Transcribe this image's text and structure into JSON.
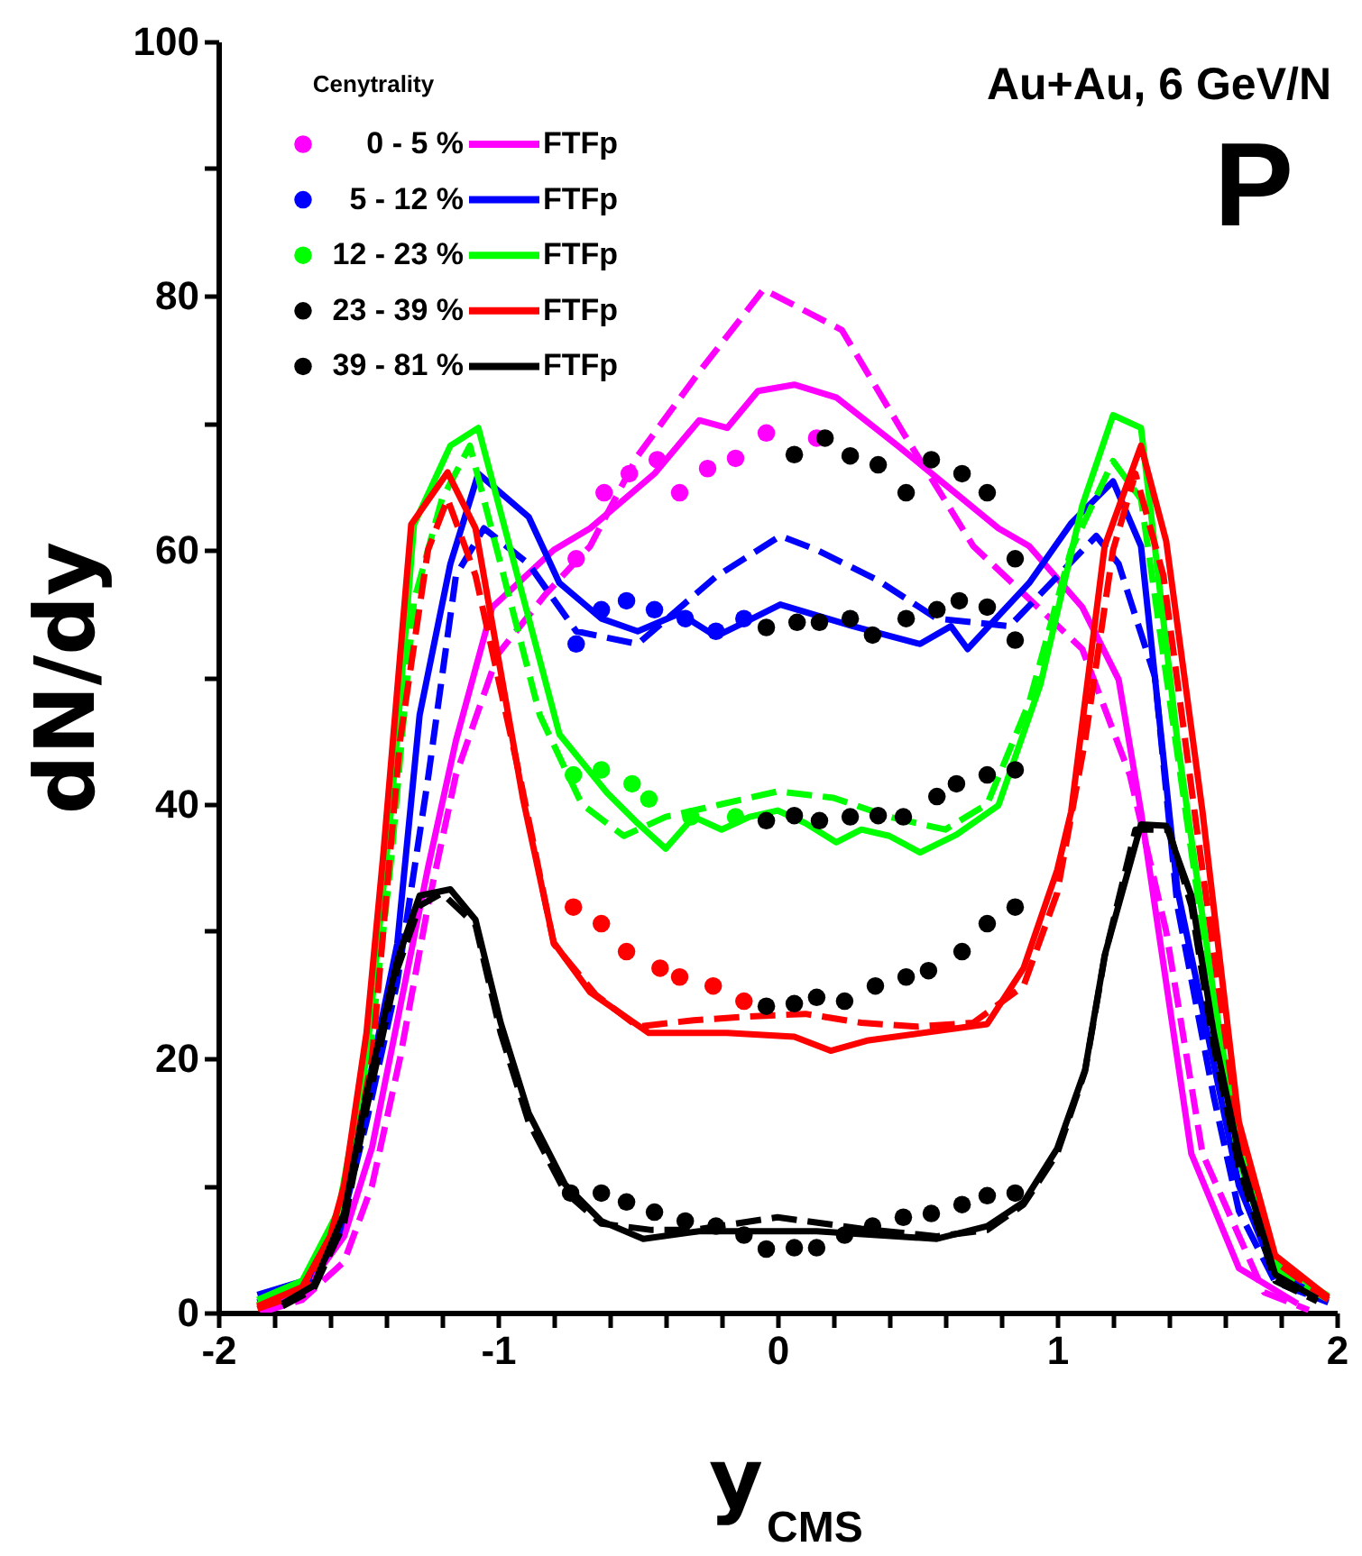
{
  "chart_data": {
    "type": "line",
    "annotations": [
      "Au+Au, 6 GeV/N",
      "P"
    ],
    "xlabel": "y$_{CMS}$",
    "ylabel": "dN/dy",
    "legend_title": "Cenytrality",
    "legend": "top left",
    "xlim": [
      -2,
      2
    ],
    "ylim": [
      0,
      100
    ],
    "xticks": [
      -2,
      {
        "value": -1.8,
        "label": null
      },
      {
        "value": -1.6,
        "label": null
      },
      {
        "value": -1.4,
        "label": null
      },
      {
        "value": -1.2,
        "label": null
      },
      -1,
      {
        "value": -0.8,
        "label": null
      },
      {
        "value": -0.6,
        "label": null
      },
      {
        "value": -0.4,
        "label": null
      },
      {
        "value": -0.2,
        "label": null
      },
      0,
      {
        "value": 0.2,
        "label": null
      },
      {
        "value": 0.4,
        "label": null
      },
      {
        "value": 0.6,
        "label": null
      },
      {
        "value": 0.8,
        "label": null
      },
      1,
      {
        "value": 1.2,
        "label": null
      },
      {
        "value": 1.4,
        "label": null
      },
      {
        "value": 1.6,
        "label": null
      },
      {
        "value": 1.8,
        "label": null
      },
      2
    ],
    "yticks": [
      0,
      {
        "value": 10,
        "label": null
      },
      20,
      {
        "value": 30,
        "label": null
      },
      40,
      {
        "value": 50,
        "label": null
      },
      60,
      {
        "value": 70,
        "label": null
      },
      80,
      {
        "value": 90,
        "label": null
      },
      100
    ],
    "series": [
      {
        "name": "0 -   5 %",
        "type": "scatter",
        "marker": "circle",
        "color": "#ff00ff",
        "x": [
          -0.72,
          -0.62,
          -0.53,
          -0.43,
          -0.35,
          -0.25,
          -0.15,
          -0.04,
          0.14
        ],
        "values": [
          59.3,
          64.5,
          66,
          67.1,
          64.5,
          66.4,
          67.2,
          69.2,
          68.8
        ]
      },
      {
        "type": "scatter",
        "marker": "circle",
        "color": "#000000",
        "x": [
          0.06,
          0.17,
          0.26,
          0.36,
          0.46,
          0.55,
          0.66,
          0.75,
          0.85
        ],
        "values": [
          67.5,
          68.8,
          67.4,
          66.7,
          64.5,
          67.1,
          66,
          64.5,
          59.3
        ]
      },
      {
        "name": "5 - 12 %",
        "type": "scatter",
        "marker": "circle",
        "color": "#0000ff",
        "x": [
          -0.72,
          -0.63,
          -0.54,
          -0.44,
          -0.33,
          -0.22,
          -0.12
        ],
        "values": [
          52.6,
          55.3,
          56,
          55.3,
          54.6,
          53.6,
          54.6
        ]
      },
      {
        "type": "scatter",
        "marker": "circle",
        "color": "#000000",
        "x": [
          -0.04,
          0.07,
          0.15,
          0.26,
          0.34,
          0.46,
          0.57,
          0.65,
          0.75,
          0.85
        ],
        "values": [
          53.9,
          54.3,
          54.3,
          54.6,
          53.3,
          54.6,
          55.3,
          56,
          55.5,
          52.9
        ]
      },
      {
        "name": "12 - 23 %",
        "type": "scatter",
        "marker": "circle",
        "color": "#00ff00",
        "x": [
          -0.73,
          -0.63,
          -0.52,
          -0.46,
          -0.31,
          -0.15
        ],
        "values": [
          42.3,
          42.7,
          41.6,
          40.4,
          39,
          39
        ]
      },
      {
        "type": "scatter",
        "marker": "circle",
        "color": "#000000",
        "x": [
          -0.04,
          0.06,
          0.15,
          0.26,
          0.36,
          0.45,
          0.57,
          0.64,
          0.75,
          0.85
        ],
        "values": [
          38.7,
          39.1,
          38.7,
          39,
          39.1,
          39,
          40.6,
          41.6,
          42.3,
          42.7
        ]
      },
      {
        "type": "scatter",
        "marker": "circle",
        "color": "#ff0000",
        "x": [
          -0.73,
          -0.63,
          -0.54,
          -0.42,
          -0.35,
          -0.23,
          -0.12
        ],
        "values": [
          31.9,
          30.6,
          28.4,
          27.1,
          26.4,
          25.7,
          24.5
        ]
      },
      {
        "name": "23 - 39 %",
        "type": "scatter",
        "marker": "circle",
        "color": "#000000",
        "x": [
          -0.04,
          0.06,
          0.14,
          0.24,
          0.35,
          0.46,
          0.54,
          0.66,
          0.75,
          0.85
        ],
        "values": [
          24.1,
          24.3,
          24.8,
          24.5,
          25.7,
          26.4,
          26.9,
          28.4,
          30.6,
          31.9
        ]
      },
      {
        "type": "scatter",
        "marker": "circle",
        "color": "#000000",
        "x": [
          -0.74,
          -0.63,
          -0.54,
          -0.44,
          -0.33,
          -0.22,
          -0.12
        ],
        "values": [
          9.4,
          9.4,
          8.7,
          7.9,
          7.2,
          6.8,
          6.1
        ]
      },
      {
        "name": "39 - 81 %",
        "type": "scatter",
        "marker": "circle",
        "color": "#000000",
        "x": [
          -0.04,
          0.06,
          0.14,
          0.24,
          0.34,
          0.45,
          0.55,
          0.66,
          0.75,
          0.85
        ],
        "values": [
          5,
          5.1,
          5.1,
          6.1,
          6.8,
          7.5,
          7.8,
          8.5,
          9.2,
          9.4
        ]
      },
      {
        "name": "FTFp",
        "line_style": "solid",
        "color": "#ff00ff",
        "x": [
          -1.85,
          -1.7,
          -1.55,
          -1.45,
          -1.35,
          -1.25,
          -1.15,
          -1.02,
          -0.8,
          -0.67,
          -0.44,
          -0.28,
          -0.18,
          -0.07,
          0.06,
          0.21,
          0.43,
          0.79,
          0.9,
          1.09,
          1.22,
          1.3,
          1.48,
          1.65,
          1.86
        ],
        "values": [
          0.3,
          1.5,
          6,
          13,
          24,
          35,
          45,
          55.5,
          60,
          61.7,
          66,
          70.2,
          69.6,
          72.5,
          73,
          72,
          68.2,
          61.7,
          60.3,
          55.5,
          49.8,
          39.4,
          12.5,
          3.5,
          0.7
        ]
      },
      {
        "line_style": "dashed",
        "color": "#ff00ff",
        "x": [
          -1.85,
          -1.7,
          -1.55,
          -1.45,
          -1.35,
          -1.25,
          -1.15,
          -1.0,
          -0.83,
          -0.67,
          -0.5,
          -0.28,
          -0.05,
          0.23,
          0.45,
          0.7,
          1.09,
          1.26,
          1.39,
          1.52,
          1.74,
          1.9
        ],
        "values": [
          0,
          1,
          4,
          10,
          20,
          32,
          42.3,
          51.8,
          56.5,
          60.3,
          67.4,
          74,
          80.5,
          77.3,
          69.2,
          60.3,
          52.2,
          42.3,
          30,
          12.5,
          1.6,
          0.2
        ]
      },
      {
        "name": "FTFp",
        "line_style": "solid",
        "color": "#0000ff",
        "x": [
          -1.86,
          -1.68,
          -1.57,
          -1.47,
          -1.36,
          -1.28,
          -1.17,
          -1.07,
          -0.89,
          -0.78,
          -0.63,
          -0.5,
          -0.35,
          -0.22,
          -0.09,
          0.01,
          0.27,
          0.51,
          0.62,
          0.68,
          0.9,
          1.05,
          1.2,
          1.3,
          1.43,
          1.56,
          1.65,
          1.78,
          1.97
        ],
        "values": [
          1.4,
          2.6,
          7.8,
          17.2,
          29,
          47,
          58.9,
          66,
          62.6,
          57.4,
          54.6,
          53.6,
          55,
          53.2,
          54.6,
          55.7,
          54,
          52.6,
          54,
          52.2,
          57.4,
          62.1,
          65.4,
          60.3,
          33.3,
          19.6,
          10,
          3,
          1.1
        ]
      },
      {
        "line_style": "dashed",
        "color": "#0000ff",
        "x": [
          -1.86,
          -1.68,
          -1.57,
          -1.47,
          -1.36,
          -1.25,
          -1.15,
          -1.05,
          -0.89,
          -0.72,
          -0.5,
          -0.22,
          0.01,
          0.14,
          0.36,
          0.57,
          0.83,
          1.14,
          1.22,
          1.35,
          1.43,
          1.56,
          1.65,
          1.78,
          1.97
        ],
        "values": [
          0.8,
          2,
          6,
          15,
          26,
          42,
          58,
          61.7,
          58.9,
          53.6,
          52.6,
          57.9,
          61.1,
          60,
          57.6,
          54.6,
          54,
          61.1,
          58.9,
          50,
          32,
          17,
          8,
          2.4,
          0.8
        ]
      },
      {
        "name": "FTFp",
        "line_style": "solid",
        "color": "#00ff00",
        "x": [
          -1.86,
          -1.7,
          -1.57,
          -1.47,
          -1.38,
          -1.3,
          -1.17,
          -1.07,
          -0.78,
          -0.61,
          -0.5,
          -0.4,
          -0.3,
          -0.2,
          -0.1,
          0,
          0.1,
          0.21,
          0.3,
          0.4,
          0.51,
          0.64,
          0.79,
          0.94,
          1.09,
          1.2,
          1.3,
          1.43,
          1.56,
          1.65,
          1.78,
          1.97
        ],
        "values": [
          1,
          2.5,
          8,
          20,
          40,
          62,
          68.2,
          69.6,
          45.5,
          40.9,
          38.5,
          36.5,
          39,
          38,
          39,
          39.5,
          38.5,
          37,
          38,
          37.5,
          36.2,
          37.6,
          39.9,
          49.4,
          63.5,
          70.6,
          69.6,
          45,
          25,
          13,
          4,
          1.3
        ]
      },
      {
        "line_style": "dashed",
        "color": "#00ff00",
        "x": [
          -1.86,
          -1.7,
          -1.57,
          -1.47,
          -1.38,
          -1.3,
          -1.2,
          -1.1,
          -0.85,
          -0.7,
          -0.55,
          -0.4,
          -0.2,
          0,
          0.2,
          0.4,
          0.6,
          0.75,
          0.9,
          1.05,
          1.2,
          1.3,
          1.43,
          1.56,
          1.65,
          1.78,
          1.97
        ],
        "values": [
          0.6,
          2,
          7,
          18,
          36,
          56,
          64,
          68.2,
          47,
          40,
          37.5,
          39,
          40,
          41,
          40.5,
          39,
          38,
          40,
          48,
          60,
          67,
          64,
          44,
          24,
          12,
          3.5,
          1
        ]
      },
      {
        "name": "FTFp",
        "line_style": "solid",
        "color": "#ff0000",
        "x": [
          -1.86,
          -1.7,
          -1.6,
          -1.55,
          -1.47,
          -1.41,
          -1.31,
          -1.18,
          -1.08,
          -0.91,
          -0.8,
          -0.67,
          -0.46,
          -0.18,
          0.06,
          0.19,
          0.32,
          0.75,
          0.88,
          1.0,
          1.05,
          1.17,
          1.3,
          1.39,
          1.52,
          1.65,
          1.78,
          1.97
        ],
        "values": [
          0.5,
          2,
          6,
          10,
          22,
          36,
          62,
          66.1,
          61.7,
          40.4,
          29.1,
          25.2,
          22,
          22,
          21.7,
          20.6,
          21.4,
          22.7,
          27.1,
          34.8,
          39.4,
          60.3,
          68.2,
          60.7,
          39.4,
          15,
          4.5,
          1.2
        ]
      },
      {
        "line_style": "dashed",
        "color": "#ff0000",
        "x": [
          -1.86,
          -1.7,
          -1.55,
          -1.45,
          -1.35,
          -1.25,
          -1.18,
          -1.08,
          -0.92,
          -0.8,
          -0.65,
          -0.5,
          -0.3,
          -0.1,
          0.1,
          0.3,
          0.5,
          0.7,
          0.88,
          1.0,
          1.1,
          1.2,
          1.28,
          1.38,
          1.5,
          1.65,
          1.78,
          1.97
        ],
        "values": [
          0.3,
          1.5,
          8,
          20,
          45,
          60,
          64,
          58,
          42,
          29,
          25,
          22.5,
          23,
          23.3,
          23.5,
          22.8,
          22.5,
          22.8,
          25.7,
          33,
          45,
          60,
          66,
          58,
          38,
          14,
          4,
          1
        ]
      },
      {
        "name": "FTFp",
        "line_style": "solid",
        "color": "#000000",
        "x": [
          -1.77,
          -1.66,
          -1.55,
          -1.47,
          -1.36,
          -1.28,
          -1.17,
          -1.08,
          -0.99,
          -0.89,
          -0.76,
          -0.63,
          -0.48,
          -0.28,
          -0.07,
          0.14,
          0.57,
          0.75,
          0.88,
          1.0,
          1.1,
          1.17,
          1.3,
          1.39,
          1.48,
          1.56,
          1.65,
          1.78,
          1.93
        ],
        "values": [
          0.7,
          2.1,
          7.8,
          17.2,
          27.7,
          32.8,
          33.3,
          30.9,
          22.8,
          15.7,
          10.1,
          7.2,
          5.8,
          6.4,
          6.4,
          6.4,
          5.8,
          6.8,
          8.7,
          12.9,
          19.1,
          28.1,
          38.4,
          38.3,
          32.8,
          22,
          12.5,
          3,
          1.1
        ]
      },
      {
        "line_style": "dashed",
        "color": "#000000",
        "x": [
          -1.77,
          -1.66,
          -1.55,
          -1.47,
          -1.36,
          -1.28,
          -1.2,
          -1.08,
          -0.99,
          -0.89,
          -0.76,
          -0.63,
          -0.45,
          -0.3,
          0,
          0.3,
          0.57,
          0.75,
          0.88,
          1.0,
          1.1,
          1.17,
          1.28,
          1.4,
          1.48,
          1.56,
          1.65,
          1.78,
          1.93
        ],
        "values": [
          0.5,
          1.8,
          7,
          16,
          27,
          32,
          33,
          30.5,
          22,
          15,
          9.5,
          7,
          6.5,
          6.5,
          7.5,
          6.6,
          6,
          6.5,
          8.5,
          12.5,
          19,
          28,
          38,
          38,
          32,
          21,
          11.5,
          2.5,
          0.9
        ]
      }
    ]
  }
}
